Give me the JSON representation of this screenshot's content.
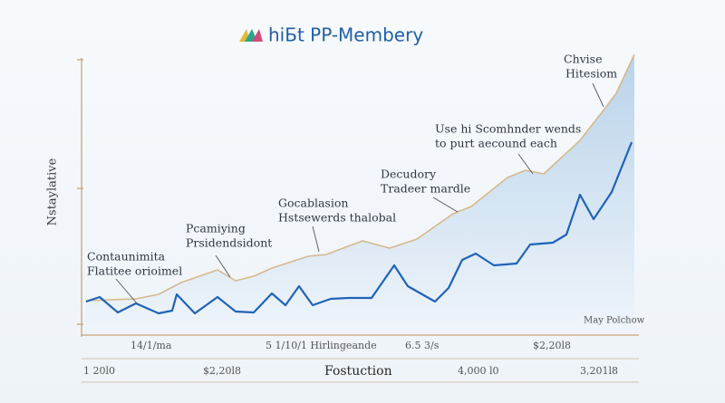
{
  "chart_data": {
    "type": "line",
    "title": "hiБt PP-Membery",
    "y_label": "Nstaylative",
    "x_label": "Fostuction",
    "xlim": [
      0,
      60.5
    ],
    "ylim": [
      0,
      30.5
    ],
    "series": [
      {
        "color": "#d8b88c",
        "area": true,
        "x": [
          0,
          5.5,
          8,
          10.5,
          14.5,
          16.5,
          18.5,
          20.5,
          24.5,
          26.5,
          30.5,
          33.5,
          36.5,
          40.5,
          42.5,
          46.5,
          48.5,
          50.5,
          54.5,
          57,
          58.5,
          60.5
        ],
        "values": [
          3.3,
          3.5,
          4,
          5.3,
          6.7,
          5.5,
          6,
          6.9,
          8.2,
          8.4,
          9.9,
          9.1,
          10.1,
          12.9,
          13.7,
          16.9,
          17.7,
          17.3,
          21,
          24.2,
          26.2,
          30.5
        ]
      },
      {
        "color": "#1f63b8",
        "area": false,
        "x": [
          0,
          1.5,
          3.5,
          5.5,
          8,
          9.5,
          10,
          12,
          14.5,
          16.5,
          18.5,
          20.5,
          22,
          23.5,
          25,
          27,
          29,
          31.5,
          34,
          35.5,
          38.5,
          40,
          41.5,
          43,
          45,
          47.5,
          49,
          51.5,
          53,
          54.5,
          56,
          58,
          60.2
        ],
        "values": [
          3.2,
          3.7,
          2,
          3,
          1.9,
          2.2,
          4,
          1.9,
          3.7,
          2.1,
          2,
          4.1,
          2.8,
          4.9,
          2.8,
          3.5,
          3.6,
          3.6,
          7.2,
          4.9,
          3.2,
          4.7,
          7.8,
          8.5,
          7.2,
          7.4,
          9.5,
          9.7,
          10.6,
          15,
          12.3,
          15.3,
          20.8
        ]
      }
    ],
    "annotations": [
      [
        "Chvise",
        "Hitesiom"
      ],
      [
        "Use hi Scomhnder wends",
        "to purt aecound each"
      ],
      [
        "Decudory",
        "Tradeer mardle"
      ],
      [
        "Gocablasion",
        "Hstsewerds thalobal"
      ],
      [
        "Pcamiying",
        "Prsidendsidont"
      ],
      [
        "Contaunimita",
        "Flatitee orioimel"
      ]
    ],
    "note": "May Polchow",
    "x_labels_top": [
      "14/1/ma",
      "5 1/10/1 Hirlingeande",
      "6.5 3/s",
      "$2,20l8"
    ],
    "x_labels_bottom": [
      "1 20l0",
      "$2,20l8",
      "4,000 l0",
      "3,201l8"
    ]
  }
}
